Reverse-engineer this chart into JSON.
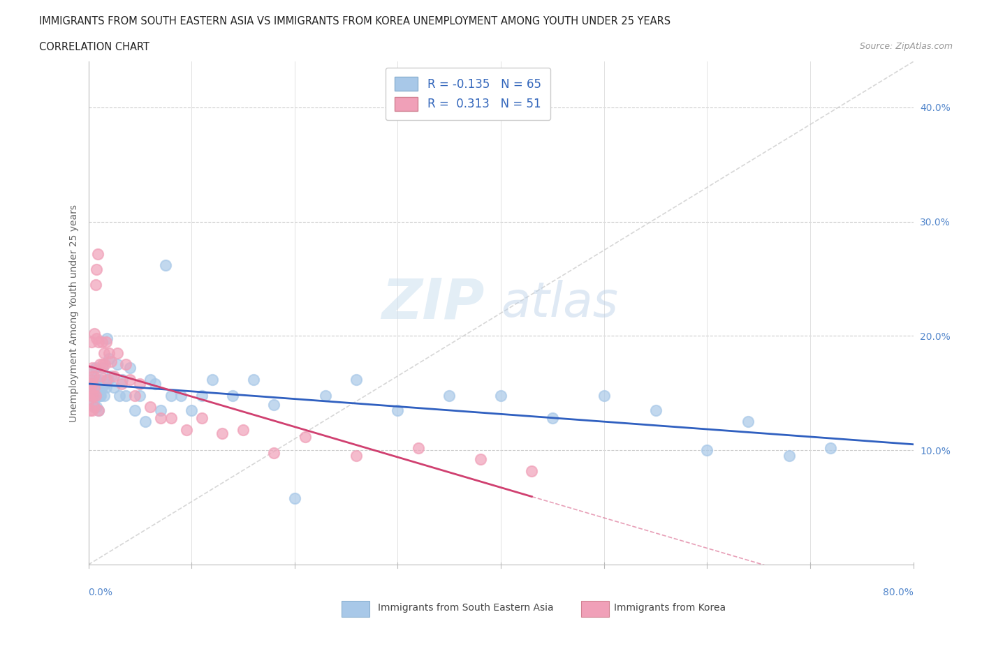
{
  "title_line1": "IMMIGRANTS FROM SOUTH EASTERN ASIA VS IMMIGRANTS FROM KOREA UNEMPLOYMENT AMONG YOUTH UNDER 25 YEARS",
  "title_line2": "CORRELATION CHART",
  "source_text": "Source: ZipAtlas.com",
  "ylabel": "Unemployment Among Youth under 25 years",
  "right_yticks": [
    "10.0%",
    "20.0%",
    "30.0%",
    "40.0%"
  ],
  "right_ytick_vals": [
    0.1,
    0.2,
    0.3,
    0.4
  ],
  "xlim": [
    0.0,
    0.8
  ],
  "ylim": [
    0.0,
    0.44
  ],
  "r_sea": -0.135,
  "n_sea": 65,
  "r_kor": 0.313,
  "n_kor": 51,
  "color_sea": "#a8c8e8",
  "color_kor": "#f0a0b8",
  "color_sea_line": "#3060c0",
  "color_kor_line": "#d04070",
  "color_diag": "#d0d0d0",
  "watermark_zip": "#c8dff0",
  "watermark_atlas": "#b8d0e8",
  "sea_x": [
    0.002,
    0.003,
    0.003,
    0.004,
    0.004,
    0.005,
    0.005,
    0.005,
    0.006,
    0.006,
    0.007,
    0.007,
    0.007,
    0.008,
    0.008,
    0.009,
    0.009,
    0.01,
    0.01,
    0.011,
    0.011,
    0.012,
    0.013,
    0.014,
    0.015,
    0.016,
    0.017,
    0.018,
    0.019,
    0.02,
    0.022,
    0.025,
    0.028,
    0.03,
    0.033,
    0.036,
    0.04,
    0.045,
    0.05,
    0.055,
    0.06,
    0.065,
    0.07,
    0.075,
    0.08,
    0.09,
    0.1,
    0.11,
    0.12,
    0.14,
    0.16,
    0.18,
    0.2,
    0.23,
    0.26,
    0.3,
    0.35,
    0.4,
    0.45,
    0.5,
    0.55,
    0.6,
    0.64,
    0.68,
    0.72
  ],
  "sea_y": [
    0.155,
    0.148,
    0.162,
    0.15,
    0.17,
    0.143,
    0.155,
    0.16,
    0.138,
    0.155,
    0.148,
    0.155,
    0.172,
    0.138,
    0.162,
    0.148,
    0.158,
    0.135,
    0.158,
    0.148,
    0.162,
    0.148,
    0.155,
    0.172,
    0.148,
    0.158,
    0.155,
    0.198,
    0.162,
    0.18,
    0.165,
    0.155,
    0.175,
    0.148,
    0.162,
    0.148,
    0.172,
    0.135,
    0.148,
    0.125,
    0.162,
    0.158,
    0.135,
    0.262,
    0.148,
    0.148,
    0.135,
    0.148,
    0.162,
    0.148,
    0.162,
    0.14,
    0.058,
    0.148,
    0.162,
    0.135,
    0.148,
    0.148,
    0.128,
    0.148,
    0.135,
    0.1,
    0.125,
    0.095,
    0.102
  ],
  "kor_x": [
    0.001,
    0.002,
    0.002,
    0.003,
    0.003,
    0.003,
    0.004,
    0.004,
    0.004,
    0.005,
    0.005,
    0.006,
    0.006,
    0.006,
    0.007,
    0.007,
    0.008,
    0.008,
    0.009,
    0.01,
    0.01,
    0.011,
    0.012,
    0.013,
    0.014,
    0.015,
    0.016,
    0.017,
    0.018,
    0.02,
    0.022,
    0.025,
    0.028,
    0.032,
    0.036,
    0.04,
    0.045,
    0.05,
    0.06,
    0.07,
    0.08,
    0.095,
    0.11,
    0.13,
    0.15,
    0.18,
    0.21,
    0.26,
    0.32,
    0.38,
    0.43
  ],
  "kor_y": [
    0.145,
    0.135,
    0.155,
    0.148,
    0.162,
    0.195,
    0.135,
    0.158,
    0.172,
    0.148,
    0.165,
    0.138,
    0.155,
    0.202,
    0.148,
    0.245,
    0.198,
    0.258,
    0.272,
    0.135,
    0.195,
    0.175,
    0.165,
    0.195,
    0.175,
    0.185,
    0.175,
    0.195,
    0.162,
    0.185,
    0.178,
    0.165,
    0.185,
    0.158,
    0.175,
    0.162,
    0.148,
    0.158,
    0.138,
    0.128,
    0.128,
    0.118,
    0.128,
    0.115,
    0.118,
    0.098,
    0.112,
    0.095,
    0.102,
    0.092,
    0.082
  ],
  "legend_labels": [
    "R = -0.135   N = 65",
    "R =  0.313   N = 51"
  ],
  "bottom_labels": [
    "Immigrants from South Eastern Asia",
    "Immigrants from Korea"
  ]
}
